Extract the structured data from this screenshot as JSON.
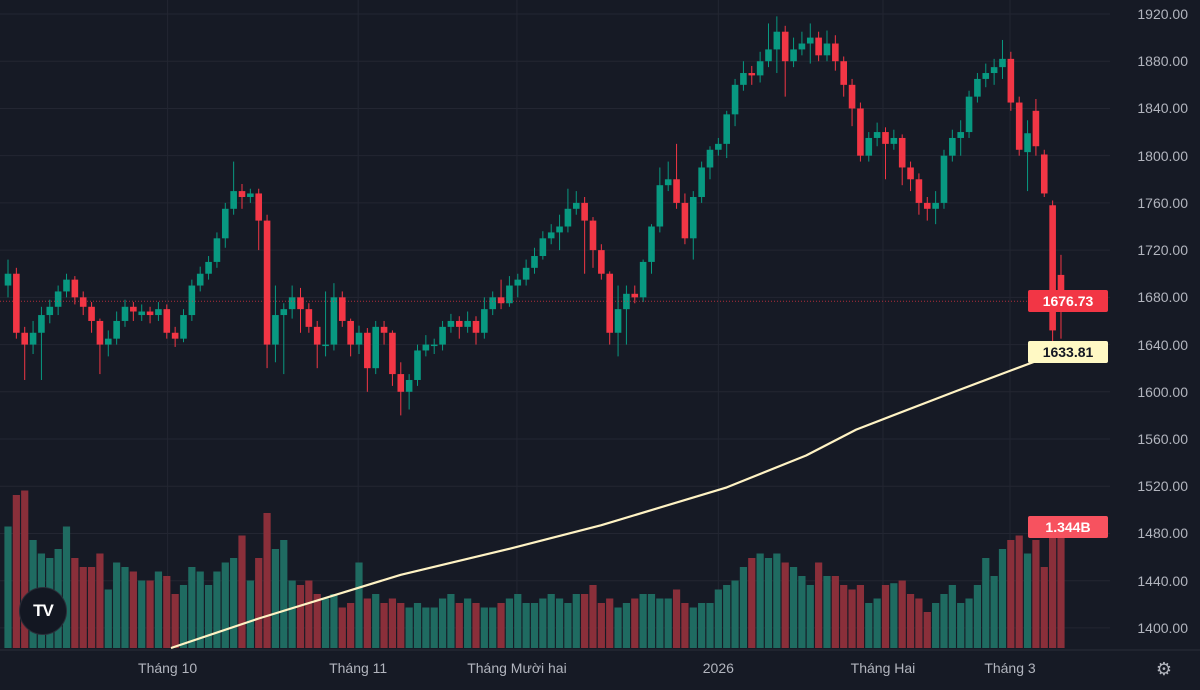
{
  "chart_data": {
    "type": "candlestick",
    "price_axis": {
      "ticks": [
        "1920.00",
        "1880.00",
        "1840.00",
        "1800.00",
        "1760.00",
        "1720.00",
        "1680.00",
        "1640.00",
        "1600.00",
        "1560.00",
        "1520.00",
        "1480.00",
        "1440.00",
        "1400.00"
      ],
      "range": [
        1393,
        1930
      ]
    },
    "time_axis": {
      "labels": [
        {
          "text": "Tháng 10",
          "index": 19.1
        },
        {
          "text": "Tháng 11",
          "index": 41.9
        },
        {
          "text": "Tháng Mười hai",
          "index": 60.9
        },
        {
          "text": "2026",
          "index": 85
        },
        {
          "text": "Tháng Hai",
          "index": 104.7
        },
        {
          "text": "Tháng 3",
          "index": 119.9
        }
      ]
    },
    "grid": true,
    "colors": {
      "up": "#089981",
      "down": "#f23645",
      "volume_up": "#1f6b61",
      "volume_down": "#8a2f3a",
      "ma": "#fff3c4",
      "background": "#161a25"
    },
    "last_price": {
      "value": 1676.73,
      "label": "1676.73"
    },
    "moving_average": {
      "label": "1633.81",
      "points": [
        [
          19.5,
          1383
        ],
        [
          30,
          1408
        ],
        [
          47,
          1445
        ],
        [
          60,
          1467
        ],
        [
          71,
          1487
        ],
        [
          86,
          1519
        ],
        [
          95.5,
          1546
        ],
        [
          101.5,
          1568
        ],
        [
          113.6,
          1601
        ],
        [
          120,
          1618
        ],
        [
          126,
          1633.81
        ]
      ]
    },
    "volume": {
      "label": "1.344B",
      "unit": "B",
      "values": [
        1.35,
        1.7,
        1.75,
        1.2,
        1.05,
        1.0,
        1.1,
        1.35,
        1.0,
        0.9,
        0.9,
        1.05,
        0.65,
        0.95,
        0.9,
        0.85,
        0.75,
        0.75,
        0.85,
        0.8,
        0.6,
        0.7,
        0.9,
        0.85,
        0.7,
        0.85,
        0.95,
        1.0,
        1.25,
        0.75,
        1.0,
        1.5,
        1.1,
        1.2,
        0.75,
        0.7,
        0.75,
        0.6,
        0.55,
        0.6,
        0.45,
        0.5,
        0.95,
        0.55,
        0.6,
        0.5,
        0.55,
        0.5,
        0.45,
        0.5,
        0.45,
        0.45,
        0.55,
        0.6,
        0.5,
        0.55,
        0.5,
        0.45,
        0.45,
        0.5,
        0.55,
        0.6,
        0.5,
        0.5,
        0.55,
        0.6,
        0.55,
        0.5,
        0.6,
        0.6,
        0.7,
        0.5,
        0.55,
        0.45,
        0.5,
        0.55,
        0.6,
        0.6,
        0.55,
        0.55,
        0.65,
        0.5,
        0.45,
        0.5,
        0.5,
        0.65,
        0.7,
        0.75,
        0.9,
        1.0,
        1.05,
        1.0,
        1.05,
        0.95,
        0.9,
        0.8,
        0.7,
        0.95,
        0.8,
        0.8,
        0.7,
        0.65,
        0.7,
        0.5,
        0.55,
        0.7,
        0.72,
        0.75,
        0.6,
        0.55,
        0.4,
        0.5,
        0.6,
        0.7,
        0.5,
        0.55,
        0.7,
        1.0,
        0.8,
        1.1,
        1.2,
        1.25,
        1.05,
        1.2,
        0.9,
        1.3,
        1.344
      ]
    },
    "ohlc": [
      [
        1690,
        1712,
        1680,
        1700
      ],
      [
        1700,
        1705,
        1645,
        1650
      ],
      [
        1650,
        1655,
        1610,
        1640
      ],
      [
        1640,
        1660,
        1632,
        1650
      ],
      [
        1650,
        1672,
        1610,
        1665
      ],
      [
        1665,
        1678,
        1658,
        1672
      ],
      [
        1672,
        1690,
        1665,
        1685
      ],
      [
        1685,
        1700,
        1680,
        1695
      ],
      [
        1695,
        1698,
        1674,
        1680
      ],
      [
        1680,
        1685,
        1665,
        1672
      ],
      [
        1672,
        1676,
        1650,
        1660
      ],
      [
        1660,
        1662,
        1615,
        1640
      ],
      [
        1640,
        1652,
        1630,
        1645
      ],
      [
        1645,
        1668,
        1640,
        1660
      ],
      [
        1660,
        1678,
        1655,
        1672
      ],
      [
        1672,
        1676,
        1660,
        1668
      ],
      [
        1665,
        1674,
        1660,
        1668
      ],
      [
        1668,
        1672,
        1658,
        1665
      ],
      [
        1665,
        1676,
        1660,
        1670
      ],
      [
        1670,
        1674,
        1645,
        1650
      ],
      [
        1650,
        1655,
        1638,
        1645
      ],
      [
        1645,
        1670,
        1642,
        1665
      ],
      [
        1665,
        1695,
        1660,
        1690
      ],
      [
        1690,
        1706,
        1685,
        1700
      ],
      [
        1700,
        1715,
        1695,
        1710
      ],
      [
        1710,
        1735,
        1705,
        1730
      ],
      [
        1730,
        1760,
        1722,
        1755
      ],
      [
        1755,
        1795,
        1750,
        1770
      ],
      [
        1770,
        1776,
        1755,
        1765
      ],
      [
        1765,
        1772,
        1760,
        1768
      ],
      [
        1768,
        1772,
        1720,
        1745
      ],
      [
        1745,
        1750,
        1620,
        1640
      ],
      [
        1640,
        1690,
        1625,
        1665
      ],
      [
        1665,
        1675,
        1615,
        1670
      ],
      [
        1670,
        1690,
        1662,
        1680
      ],
      [
        1680,
        1688,
        1650,
        1670
      ],
      [
        1670,
        1675,
        1650,
        1655
      ],
      [
        1655,
        1660,
        1620,
        1640
      ],
      [
        1640,
        1685,
        1630,
        1640
      ],
      [
        1640,
        1692,
        1635,
        1680
      ],
      [
        1680,
        1685,
        1655,
        1660
      ],
      [
        1660,
        1662,
        1630,
        1640
      ],
      [
        1640,
        1656,
        1632,
        1650
      ],
      [
        1650,
        1654,
        1600,
        1620
      ],
      [
        1620,
        1660,
        1615,
        1655
      ],
      [
        1655,
        1660,
        1640,
        1650
      ],
      [
        1650,
        1652,
        1605,
        1615
      ],
      [
        1615,
        1625,
        1580,
        1600
      ],
      [
        1600,
        1615,
        1585,
        1610
      ],
      [
        1610,
        1640,
        1605,
        1635
      ],
      [
        1635,
        1648,
        1630,
        1640
      ],
      [
        1640,
        1645,
        1632,
        1640
      ],
      [
        1640,
        1660,
        1635,
        1655
      ],
      [
        1655,
        1666,
        1650,
        1660
      ],
      [
        1660,
        1664,
        1645,
        1655
      ],
      [
        1655,
        1668,
        1650,
        1660
      ],
      [
        1660,
        1664,
        1640,
        1650
      ],
      [
        1650,
        1680,
        1645,
        1670
      ],
      [
        1670,
        1685,
        1665,
        1680
      ],
      [
        1680,
        1695,
        1670,
        1675
      ],
      [
        1675,
        1698,
        1672,
        1690
      ],
      [
        1690,
        1700,
        1680,
        1695
      ],
      [
        1695,
        1712,
        1690,
        1705
      ],
      [
        1705,
        1722,
        1700,
        1715
      ],
      [
        1715,
        1736,
        1712,
        1730
      ],
      [
        1730,
        1742,
        1725,
        1735
      ],
      [
        1735,
        1750,
        1720,
        1740
      ],
      [
        1740,
        1772,
        1735,
        1755
      ],
      [
        1755,
        1770,
        1750,
        1760
      ],
      [
        1760,
        1765,
        1700,
        1745
      ],
      [
        1745,
        1748,
        1705,
        1720
      ],
      [
        1720,
        1725,
        1695,
        1700
      ],
      [
        1700,
        1702,
        1640,
        1650
      ],
      [
        1650,
        1690,
        1630,
        1670
      ],
      [
        1670,
        1690,
        1640,
        1683
      ],
      [
        1683,
        1690,
        1675,
        1680
      ],
      [
        1680,
        1712,
        1676,
        1710
      ],
      [
        1710,
        1742,
        1700,
        1740
      ],
      [
        1740,
        1790,
        1735,
        1775
      ],
      [
        1775,
        1795,
        1770,
        1780
      ],
      [
        1780,
        1810,
        1755,
        1760
      ],
      [
        1760,
        1768,
        1725,
        1730
      ],
      [
        1730,
        1770,
        1712,
        1765
      ],
      [
        1765,
        1795,
        1760,
        1790
      ],
      [
        1790,
        1808,
        1780,
        1805
      ],
      [
        1805,
        1815,
        1800,
        1810
      ],
      [
        1810,
        1838,
        1798,
        1835
      ],
      [
        1835,
        1865,
        1825,
        1860
      ],
      [
        1860,
        1880,
        1855,
        1870
      ],
      [
        1870,
        1876,
        1860,
        1868
      ],
      [
        1868,
        1888,
        1862,
        1880
      ],
      [
        1880,
        1912,
        1875,
        1890
      ],
      [
        1890,
        1918,
        1870,
        1905
      ],
      [
        1905,
        1910,
        1850,
        1880
      ],
      [
        1880,
        1900,
        1875,
        1890
      ],
      [
        1890,
        1905,
        1885,
        1895
      ],
      [
        1895,
        1912,
        1878,
        1900
      ],
      [
        1900,
        1905,
        1880,
        1885
      ],
      [
        1885,
        1906,
        1880,
        1895
      ],
      [
        1895,
        1902,
        1872,
        1880
      ],
      [
        1880,
        1884,
        1850,
        1860
      ],
      [
        1860,
        1865,
        1825,
        1840
      ],
      [
        1840,
        1845,
        1795,
        1800
      ],
      [
        1800,
        1820,
        1795,
        1815
      ],
      [
        1815,
        1828,
        1808,
        1820
      ],
      [
        1820,
        1824,
        1780,
        1810
      ],
      [
        1810,
        1822,
        1805,
        1815
      ],
      [
        1815,
        1818,
        1775,
        1790
      ],
      [
        1790,
        1795,
        1770,
        1780
      ],
      [
        1780,
        1785,
        1750,
        1760
      ],
      [
        1760,
        1765,
        1745,
        1755
      ],
      [
        1755,
        1770,
        1742,
        1760
      ],
      [
        1760,
        1805,
        1755,
        1800
      ],
      [
        1800,
        1822,
        1795,
        1815
      ],
      [
        1815,
        1830,
        1800,
        1820
      ],
      [
        1820,
        1855,
        1815,
        1850
      ],
      [
        1850,
        1870,
        1845,
        1865
      ],
      [
        1865,
        1878,
        1858,
        1870
      ],
      [
        1870,
        1882,
        1860,
        1875
      ],
      [
        1875,
        1898,
        1865,
        1882
      ],
      [
        1882,
        1888,
        1838,
        1845
      ],
      [
        1845,
        1850,
        1800,
        1805
      ],
      [
        1803,
        1830,
        1770,
        1819
      ],
      [
        1838,
        1848,
        1800,
        1808
      ],
      [
        1801,
        1805,
        1765,
        1768
      ],
      [
        1758,
        1762,
        1640,
        1652
      ],
      [
        1699,
        1716,
        1645,
        1676.73
      ]
    ]
  },
  "logo": {
    "text": "TV"
  },
  "icons": {
    "settings": "gear-icon",
    "logo": "tradingview-logo"
  }
}
